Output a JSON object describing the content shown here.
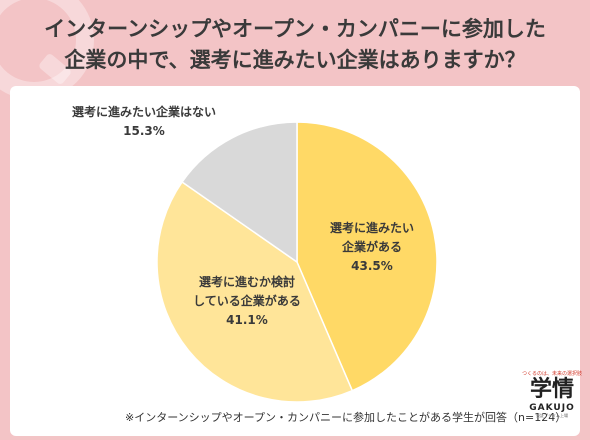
{
  "title_lines": [
    "インターンシップやオープン・カンパニーに参加した",
    "企業の中で、選考に進みたい企業はありますか？"
  ],
  "chart_data": {
    "type": "pie",
    "slices": [
      {
        "label_lines": [
          "選考に進みたい",
          "企業がある"
        ],
        "value": 43.5,
        "display": "43.5%",
        "color": "#ffd966"
      },
      {
        "label_lines": [
          "選考に進むか検討",
          "している企業がある"
        ],
        "value": 41.1,
        "display": "41.1%",
        "color": "#ffe599"
      },
      {
        "label_lines": [
          "選考に進みたい企業はない"
        ],
        "value": 15.3,
        "display": "15.3%",
        "color": "#d9d9d9"
      }
    ]
  },
  "footnote": "※インターンシップやオープン・カンパニーに参加したことがある学生が回答（n=124）",
  "logo": {
    "tagline": "つくるのは、未来の選択肢",
    "kanji": "学情",
    "roman": "GAKUJO",
    "sub": "東証プライム上場"
  }
}
